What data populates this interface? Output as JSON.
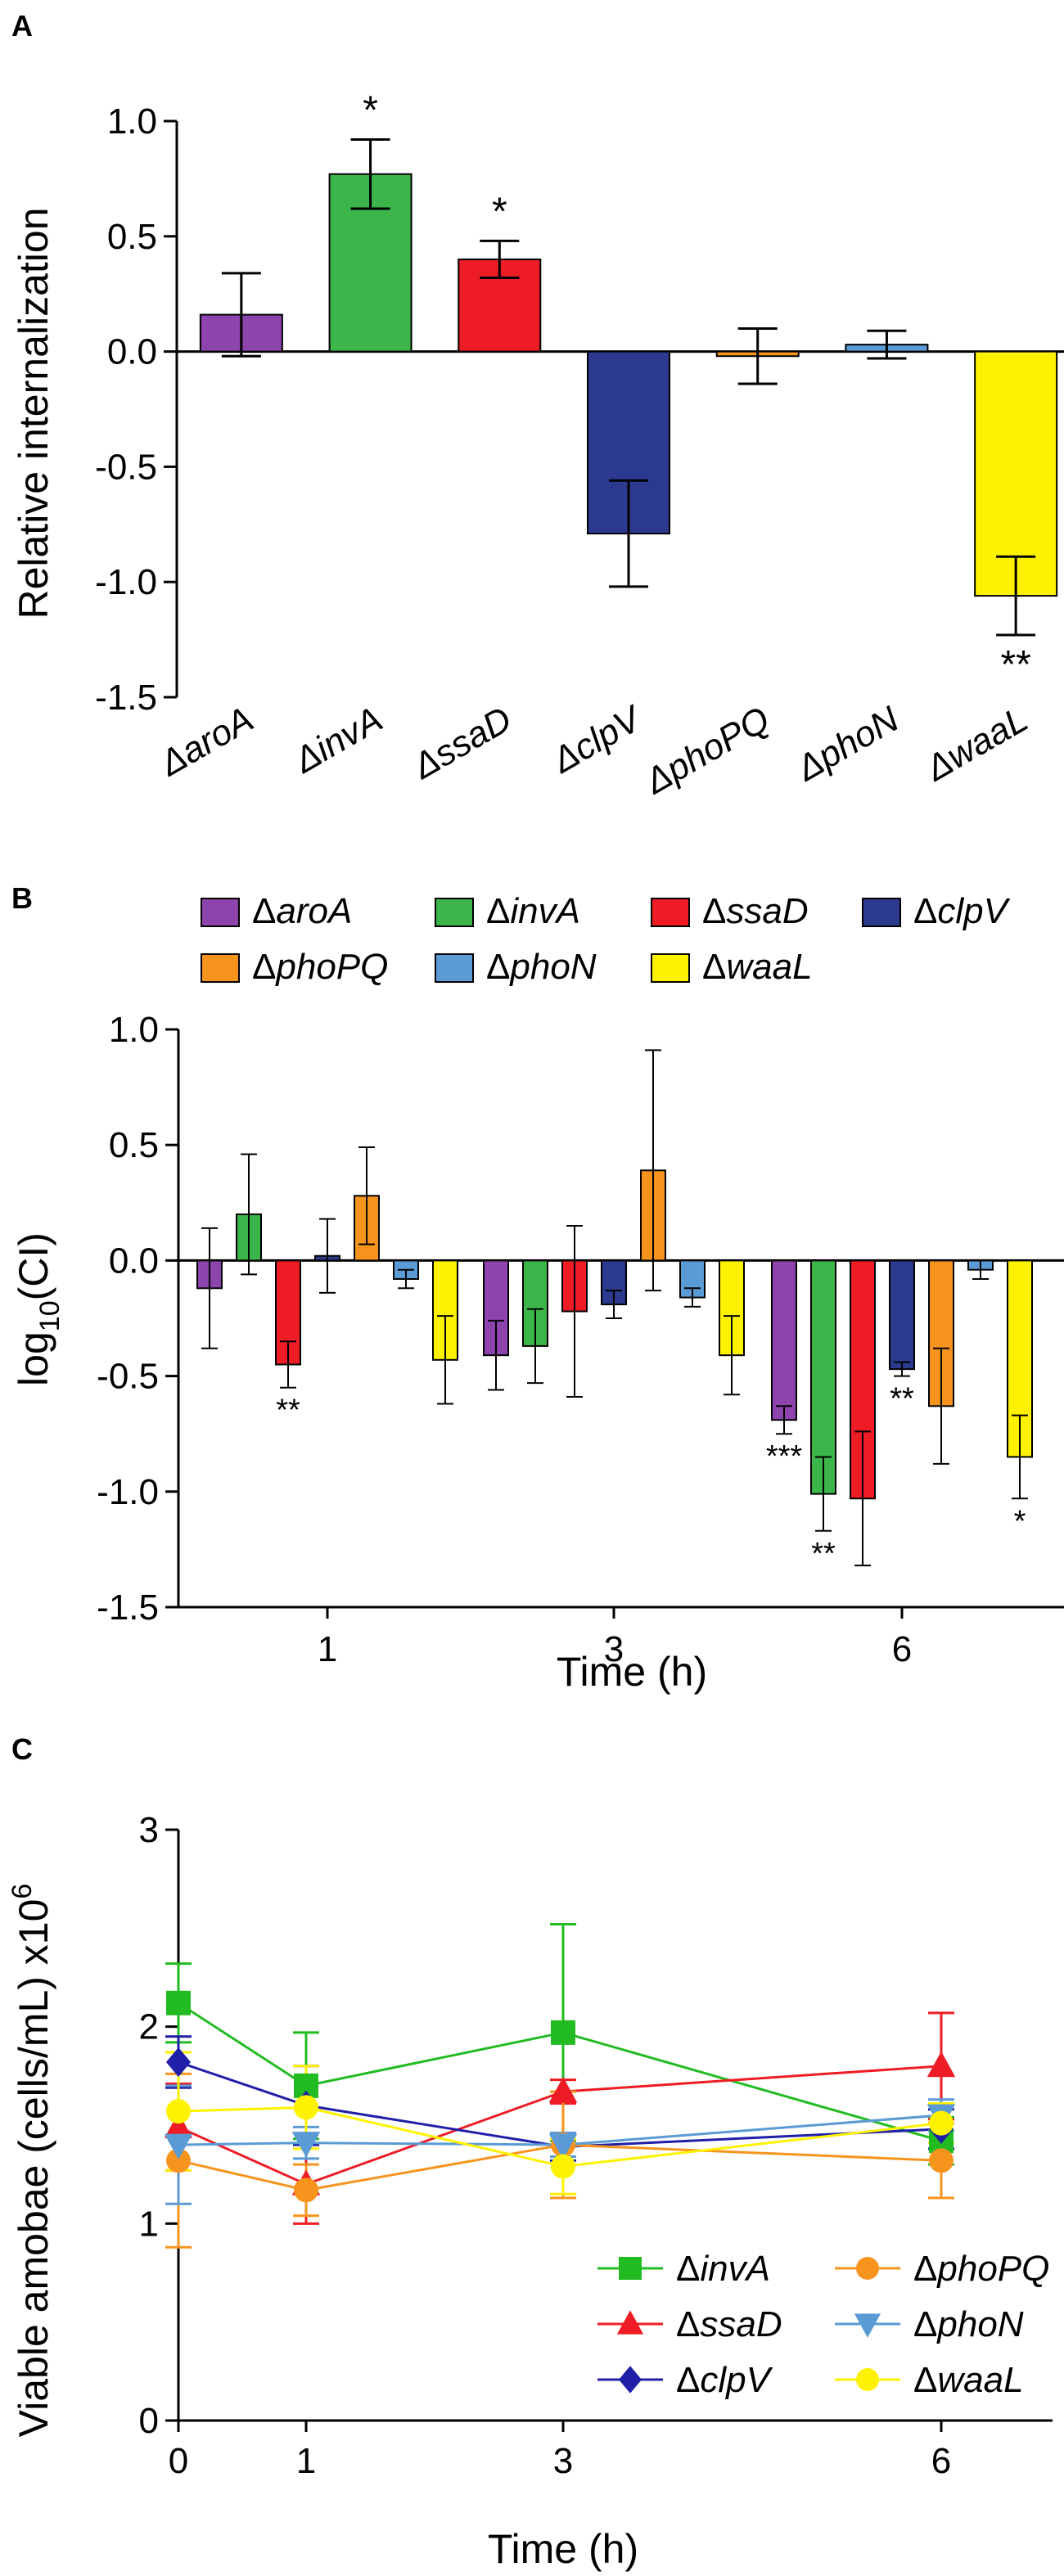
{
  "figure": {
    "panels": [
      {
        "label": "A",
        "chart_data": {
          "type": "bar",
          "ylabel": "Relative internalization",
          "ylim": [
            -1.5,
            1.0
          ],
          "yticks": [
            "1.0",
            "0.5",
            "0.0",
            "-0.5",
            "-1.0",
            "-1.5"
          ],
          "categories": [
            "ΔaroA",
            "ΔinvA",
            "ΔssaD",
            "ΔclpV",
            "ΔphoPQ",
            "ΔphoN",
            "ΔwaaL"
          ],
          "values": [
            0.16,
            0.77,
            0.4,
            -0.79,
            -0.02,
            0.03,
            -1.06
          ],
          "errors": [
            0.18,
            0.15,
            0.08,
            0.23,
            0.12,
            0.06,
            0.17
          ],
          "colors": [
            "#8e44ad",
            "#3cb54a",
            "#ee1c25",
            "#2b3a8f",
            "#f7941d",
            "#5b9bd5",
            "#fff200"
          ],
          "significance": [
            "",
            "*",
            "*",
            "",
            "",
            "",
            "**"
          ]
        }
      },
      {
        "label": "B",
        "chart_data": {
          "type": "bar",
          "ylabel_main": "log",
          "ylabel_sub": "10",
          "ylabel_rest": "(CI)",
          "xlabel": "Time (h)",
          "ylim": [
            -1.5,
            1.0
          ],
          "yticks": [
            "1.0",
            "0.5",
            "0.0",
            "-0.5",
            "-1.0",
            "-1.5"
          ],
          "categories": [
            "1",
            "3",
            "6"
          ],
          "legend": [
            {
              "prefix": "Δ",
              "name": "aroA",
              "color": "#8e44ad"
            },
            {
              "prefix": "Δ",
              "name": "invA",
              "color": "#3cb54a"
            },
            {
              "prefix": "Δ",
              "name": "ssaD",
              "color": "#ee1c25"
            },
            {
              "prefix": "Δ",
              "name": "clpV",
              "color": "#2b3a8f"
            },
            {
              "prefix": "Δ",
              "name": "phoPQ",
              "color": "#f7941d"
            },
            {
              "prefix": "Δ",
              "name": "phoN",
              "color": "#5b9bd5"
            },
            {
              "prefix": "Δ",
              "name": "waaL",
              "color": "#fff200"
            }
          ],
          "series": [
            {
              "name": "ΔaroA",
              "values": [
                -0.12,
                -0.41,
                -0.69
              ],
              "errors": [
                0.26,
                0.15,
                0.06
              ],
              "significance": [
                "",
                "",
                "***"
              ]
            },
            {
              "name": "ΔinvA",
              "values": [
                0.2,
                -0.37,
                -1.01
              ],
              "errors": [
                0.26,
                0.16,
                0.16
              ],
              "significance": [
                "",
                "",
                "**"
              ]
            },
            {
              "name": "ΔssaD",
              "values": [
                -0.45,
                -0.22,
                -1.03
              ],
              "errors": [
                0.1,
                0.37,
                0.29
              ],
              "significance": [
                "**",
                "",
                ""
              ]
            },
            {
              "name": "ΔclpV",
              "values": [
                0.02,
                -0.19,
                -0.47
              ],
              "errors": [
                0.16,
                0.06,
                0.03
              ],
              "significance": [
                "",
                "",
                "**"
              ]
            },
            {
              "name": "ΔphoPQ",
              "values": [
                0.28,
                0.39,
                -0.63
              ],
              "errors": [
                0.21,
                0.52,
                0.25
              ],
              "significance": [
                "",
                "",
                ""
              ]
            },
            {
              "name": "ΔphoN",
              "values": [
                -0.08,
                -0.16,
                -0.04
              ],
              "errors": [
                0.04,
                0.04,
                0.04
              ],
              "significance": [
                "",
                "",
                ""
              ]
            },
            {
              "name": "ΔwaaL",
              "values": [
                -0.43,
                -0.41,
                -0.85
              ],
              "errors": [
                0.19,
                0.17,
                0.18
              ],
              "significance": [
                "",
                "",
                "*"
              ]
            }
          ]
        }
      },
      {
        "label": "C",
        "chart_data": {
          "type": "line",
          "ylabel_main": "Viable amobae (cells/mL) x10",
          "ylabel_exp": "6",
          "xlabel": "Time (h)",
          "x": [
            0,
            1,
            3,
            6
          ],
          "xticks": [
            "0",
            "1",
            "3",
            "6"
          ],
          "ylim": [
            0,
            3
          ],
          "yticks": [
            "3",
            "2",
            "1",
            "0"
          ],
          "series": [
            {
              "prefix": "Δ",
              "name": "invA",
              "marker": "square",
              "color": "#22bb22",
              "values": [
                2.12,
                1.7,
                1.97,
                1.42
              ],
              "errors": [
                0.2,
                0.27,
                0.55,
                0.12
              ]
            },
            {
              "prefix": "Δ",
              "name": "ssaD",
              "marker": "triangle",
              "color": "#ee1c25",
              "values": [
                1.49,
                1.2,
                1.67,
                1.8
              ],
              "errors": [
                0.22,
                0.2,
                0.06,
                0.27
              ]
            },
            {
              "prefix": "Δ",
              "name": "clpV",
              "marker": "diamond",
              "color": "#1f1fa8",
              "values": [
                1.82,
                1.6,
                1.39,
                1.48
              ],
              "errors": [
                0.13,
                0.2,
                0.07,
                0.1
              ]
            },
            {
              "prefix": "Δ",
              "name": "phoPQ",
              "marker": "circle",
              "color": "#f7941d",
              "values": [
                1.32,
                1.17,
                1.4,
                1.32
              ],
              "errors": [
                0.44,
                0.13,
                0.27,
                0.19
              ]
            },
            {
              "prefix": "Δ",
              "name": "phoN",
              "marker": "triangle-down",
              "color": "#5b9bd5",
              "values": [
                1.4,
                1.41,
                1.4,
                1.55
              ],
              "errors": [
                0.3,
                0.08,
                0.06,
                0.08
              ]
            },
            {
              "prefix": "Δ",
              "name": "waaL",
              "marker": "circle",
              "color": "#fff200",
              "values": [
                1.57,
                1.59,
                1.29,
                1.51
              ],
              "errors": [
                0.3,
                0.21,
                0.14,
                0.1
              ]
            }
          ]
        }
      }
    ]
  }
}
